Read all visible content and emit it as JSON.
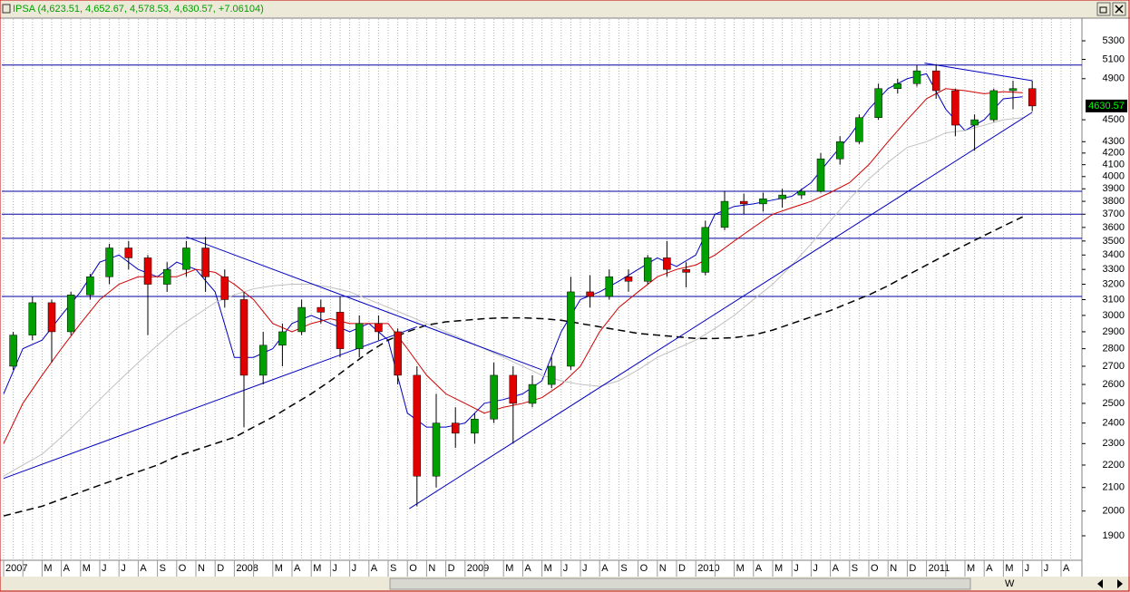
{
  "chart_data": {
    "type": "candlestick",
    "title": "IPSA (4,623.51, 4,652.67, 4,578.53, 4,630.57, +7.06104)",
    "categories": [
      "2007",
      null,
      "M",
      "A",
      "M",
      "J",
      "J",
      "A",
      "S",
      "O",
      "N",
      "D",
      "2008",
      null,
      "M",
      "A",
      "M",
      "J",
      "J",
      "A",
      "S",
      "O",
      "N",
      "D",
      "2009",
      null,
      "M",
      "A",
      "M",
      "J",
      "J",
      "A",
      "S",
      "O",
      "N",
      "D",
      "2010",
      null,
      "M",
      "A",
      "M",
      "J",
      "J",
      "A",
      "S",
      "O",
      "N",
      "D",
      "2011",
      null,
      "M",
      "A",
      "M",
      "J",
      "J",
      "A"
    ],
    "open": [
      2700,
      2880,
      3080,
      2900,
      3130,
      3250,
      3450,
      3380,
      3200,
      3300,
      3450,
      3250,
      3100,
      2650,
      2820,
      2900,
      3050,
      3020,
      2800,
      2950,
      2900,
      2650,
      2150,
      2400,
      2350,
      2420,
      2650,
      2500,
      2600,
      2700,
      3150,
      3120,
      3250,
      3220,
      3380,
      3300,
      3280,
      3600,
      3800,
      3780,
      3820,
      3850,
      3880,
      4150,
      4300,
      4520,
      4800,
      4850,
      4980,
      4780,
      4450,
      4500,
      4780,
      4800,
      null,
      null
    ],
    "high": [
      2900,
      3120,
      3100,
      3150,
      3270,
      3480,
      3500,
      3400,
      3350,
      3500,
      3530,
      3300,
      3150,
      2900,
      2950,
      3100,
      3100,
      3120,
      3000,
      3000,
      2920,
      2700,
      2550,
      2480,
      2450,
      2720,
      2700,
      2650,
      2750,
      3250,
      3260,
      3300,
      3300,
      3400,
      3500,
      3350,
      3650,
      3880,
      3860,
      3870,
      3900,
      3900,
      4200,
      4350,
      4550,
      4850,
      4900,
      5040,
      5050,
      4800,
      4550,
      4800,
      4880,
      4880,
      null,
      null
    ],
    "low": [
      2680,
      2850,
      2720,
      2880,
      3100,
      3200,
      3300,
      2880,
      3150,
      3250,
      3150,
      3050,
      2380,
      2600,
      2700,
      2880,
      2950,
      2750,
      2750,
      2850,
      2600,
      2020,
      2100,
      2280,
      2300,
      2400,
      2300,
      2480,
      2580,
      2680,
      3050,
      3100,
      3150,
      3200,
      3250,
      3180,
      3260,
      3580,
      3700,
      3720,
      3750,
      3820,
      3870,
      4100,
      4280,
      4500,
      4750,
      4820,
      4700,
      4350,
      4220,
      4480,
      4600,
      4580,
      null,
      null
    ],
    "close": [
      2880,
      3080,
      2900,
      3130,
      3250,
      3450,
      3380,
      3200,
      3300,
      3450,
      3250,
      3100,
      2650,
      2820,
      2900,
      3050,
      3020,
      2800,
      2950,
      2900,
      2650,
      2150,
      2400,
      2350,
      2420,
      2650,
      2500,
      2600,
      2700,
      3150,
      3120,
      3250,
      3220,
      3380,
      3300,
      3280,
      3600,
      3800,
      3780,
      3820,
      3850,
      3880,
      4150,
      4300,
      4520,
      4800,
      4850,
      4980,
      4780,
      4450,
      4500,
      4780,
      4800,
      4630.57,
      null,
      null
    ],
    "up_color": "#00a000",
    "down_color": "#e00000",
    "series": [
      {
        "color": "#0000c0",
        "dash": false,
        "values": [
          2550,
          2800,
          2850,
          3000,
          3150,
          3350,
          3400,
          3300,
          3250,
          3350,
          3300,
          3150,
          2750,
          2750,
          2800,
          2950,
          3000,
          2950,
          2900,
          2950,
          2850,
          2450,
          2380,
          2380,
          2400,
          2500,
          2520,
          2550,
          2620,
          2900,
          3100,
          3150,
          3220,
          3300,
          3380,
          3320,
          3400,
          3700,
          3760,
          3780,
          3810,
          3840,
          3950,
          4150,
          4350,
          4600,
          4800,
          4900,
          4950,
          4600,
          4400,
          4500,
          4700,
          4720,
          null,
          null
        ]
      },
      {
        "color": "#d00000",
        "dash": false,
        "values": [
          2300,
          2500,
          2650,
          2800,
          2950,
          3100,
          3200,
          3250,
          3250,
          3250,
          3300,
          3280,
          3200,
          3100,
          2950,
          2900,
          2950,
          2980,
          2950,
          2950,
          2950,
          2800,
          2650,
          2550,
          2500,
          2450,
          2480,
          2500,
          2530,
          2600,
          2700,
          2900,
          3050,
          3150,
          3250,
          3300,
          3330,
          3400,
          3500,
          3600,
          3700,
          3750,
          3800,
          3870,
          3950,
          4100,
          4300,
          4500,
          4700,
          4800,
          4780,
          4750,
          4770,
          4760,
          null,
          null
        ]
      },
      {
        "color": "#c0c0c0",
        "dash": false,
        "values": [
          2150,
          2200,
          2250,
          2330,
          2420,
          2520,
          2620,
          2720,
          2820,
          2920,
          3000,
          3080,
          3130,
          3170,
          3190,
          3200,
          3200,
          3180,
          3150,
          3100,
          3050,
          3000,
          2950,
          2900,
          2850,
          2800,
          2750,
          2700,
          2650,
          2620,
          2600,
          2590,
          2620,
          2680,
          2750,
          2800,
          2850,
          2920,
          3000,
          3100,
          3200,
          3330,
          3480,
          3650,
          3820,
          3980,
          4120,
          4250,
          4300,
          4380,
          4400,
          4450,
          4500,
          4520,
          null,
          null
        ]
      },
      {
        "color": "#000000",
        "dash": true,
        "values": [
          1980,
          2000,
          2020,
          2050,
          2080,
          2110,
          2140,
          2170,
          2200,
          2240,
          2270,
          2300,
          2330,
          2380,
          2430,
          2490,
          2550,
          2620,
          2700,
          2780,
          2850,
          2900,
          2940,
          2960,
          2970,
          2980,
          2985,
          2985,
          2980,
          2970,
          2950,
          2930,
          2910,
          2890,
          2880,
          2870,
          2860,
          2860,
          2865,
          2880,
          2910,
          2950,
          2990,
          3030,
          3080,
          3130,
          3190,
          3260,
          3330,
          3400,
          3470,
          3540,
          3610,
          3680,
          null,
          null
        ]
      }
    ],
    "hlines": {
      "color": "#0000a0",
      "values": [
        5040,
        3880,
        3700,
        3520,
        3120
      ]
    },
    "trendlines": {
      "color": "#0000c0",
      "lines": [
        {
          "x": [
            0,
            21.5
          ],
          "y": [
            2140,
            2930
          ]
        },
        {
          "x": [
            9.5,
            28
          ],
          "y": [
            3530,
            2680
          ]
        },
        {
          "x": [
            21.1,
            53.5
          ],
          "y": [
            2010,
            4570
          ]
        },
        {
          "x": [
            47.9,
            53.5
          ],
          "y": [
            5060,
            4880
          ]
        }
      ]
    },
    "ylim": [
      1806,
      5555
    ],
    "log_scale": true,
    "grid": true,
    "yticks": [
      5300,
      5100,
      4900,
      4500,
      4300,
      4200,
      4100,
      4000,
      3900,
      3800,
      3700,
      3600,
      3500,
      3400,
      3300,
      3200,
      3100,
      3000,
      2900,
      2800,
      2700,
      2600,
      2500,
      2400,
      2300,
      2200,
      2100,
      2000,
      1900
    ]
  },
  "toolbar": {
    "w": "W"
  }
}
